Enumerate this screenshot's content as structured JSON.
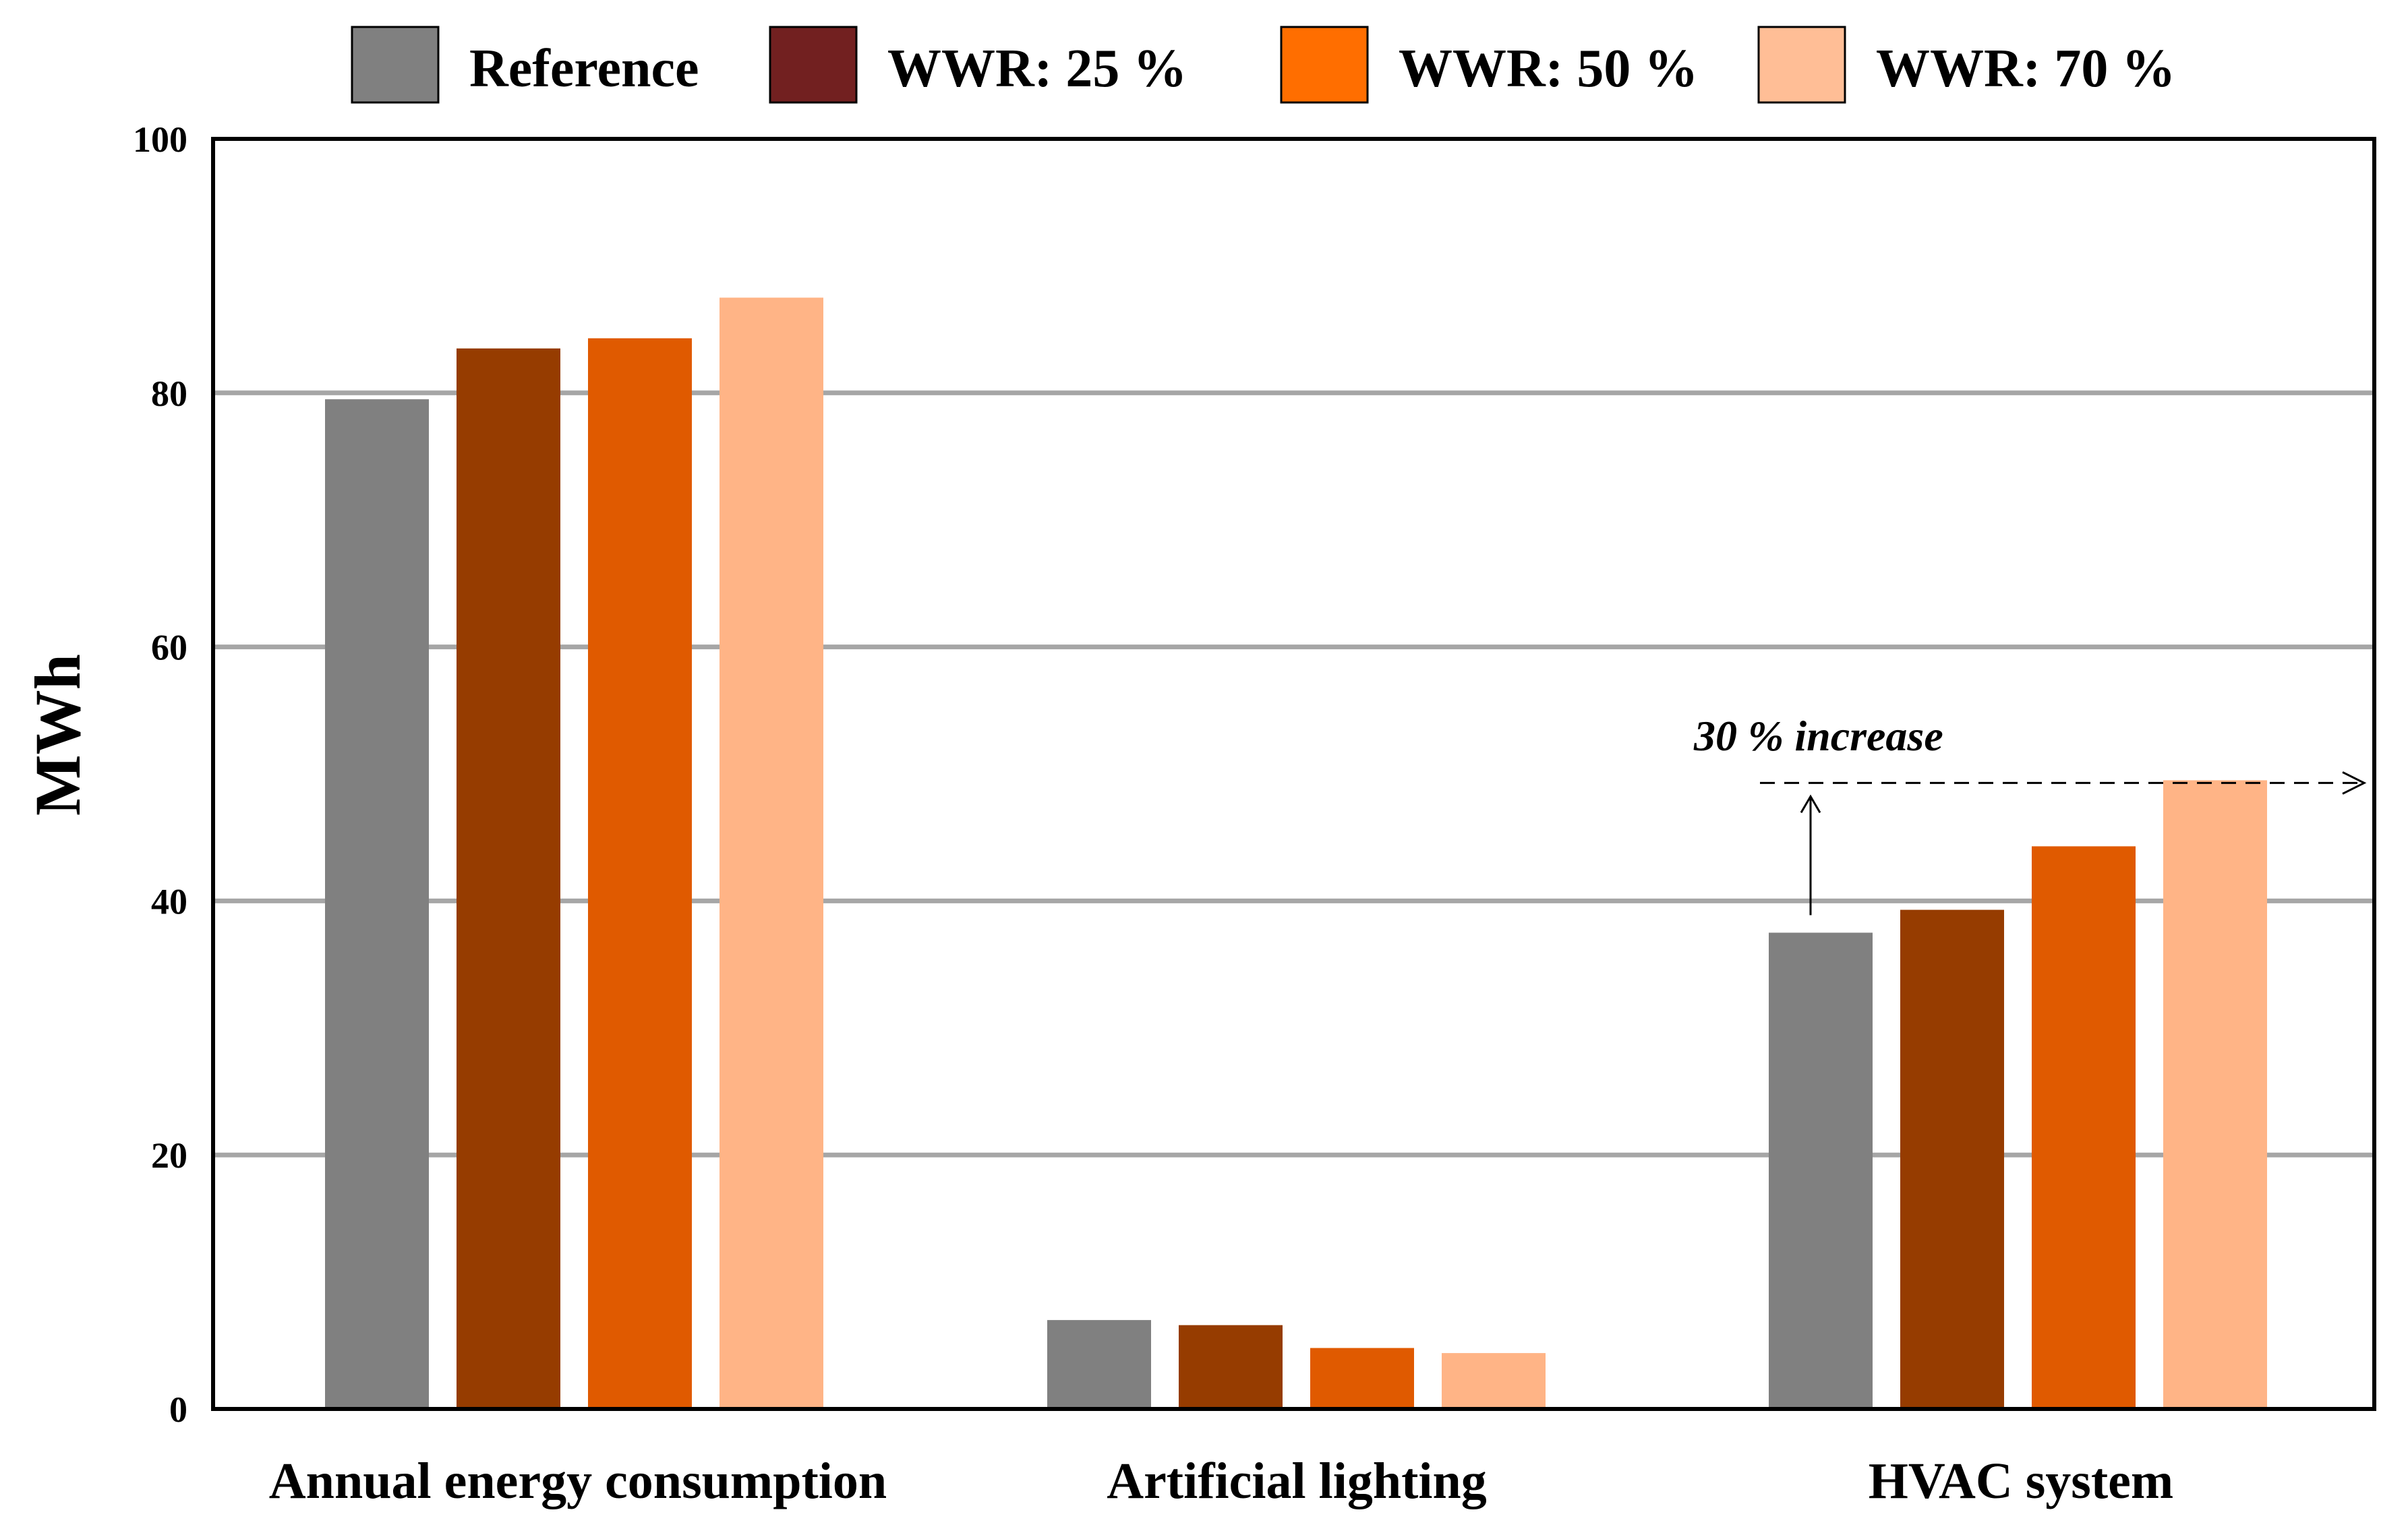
{
  "chart_data": {
    "type": "bar",
    "title": "",
    "xlabel": "",
    "ylabel": "MWh",
    "ylim": [
      0,
      100
    ],
    "yticks": [
      "0",
      "20",
      "40",
      "60",
      "80",
      "100"
    ],
    "grid": true,
    "legend_position": "top",
    "categories": [
      "Annual energy consumption",
      "Artificial lighting",
      "HVAC system"
    ],
    "series": [
      {
        "name": "Reference",
        "legend_color": "#808080",
        "bar_color": "#808080",
        "values": [
          79.5,
          7.0,
          37.5
        ]
      },
      {
        "name": "WWR: 25 %",
        "legend_color": "#722020",
        "bar_color": "#963C00",
        "values": [
          83.5,
          6.6,
          39.3
        ]
      },
      {
        "name": "WWR: 50 %",
        "legend_color": "#FF6E00",
        "bar_color": "#E05A00",
        "values": [
          84.3,
          4.8,
          44.3
        ]
      },
      {
        "name": "WWR: 70 %",
        "legend_color": "#FFBE96",
        "bar_color": "#FFB486",
        "values": [
          87.5,
          4.4,
          49.5
        ]
      }
    ],
    "annotation": {
      "text": "30 % increase",
      "category": "HVAC system",
      "from_value": 37.5,
      "to_value": 49.5
    }
  }
}
